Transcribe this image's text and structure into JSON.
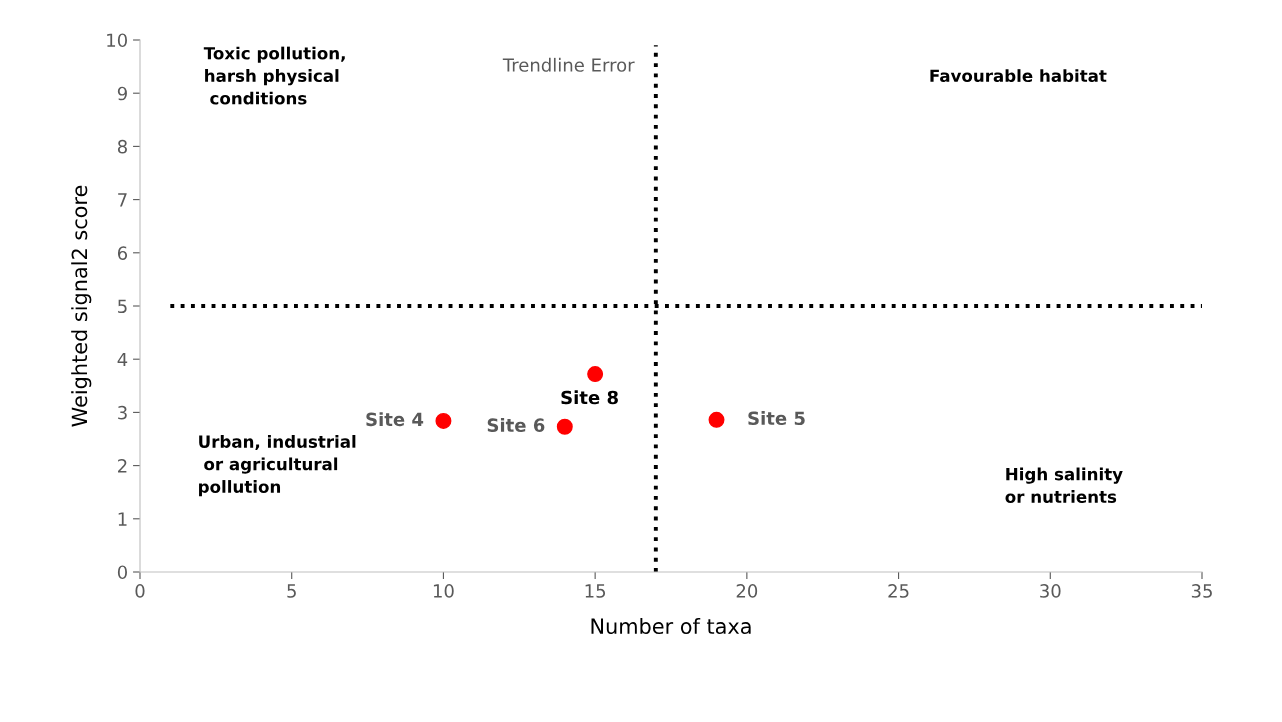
{
  "chart_data": {
    "type": "scatter",
    "xlabel": "Number of taxa",
    "ylabel": "Weighted signal2 score",
    "x": [
      10,
      14,
      15,
      19
    ],
    "values": [
      2.84,
      2.73,
      3.72,
      2.86
    ],
    "color": "#ff0000",
    "marker": "circle",
    "xlim": [
      0,
      35
    ],
    "ylim": [
      0,
      10
    ],
    "xticks": [
      0,
      5,
      10,
      15,
      20,
      25,
      30,
      35
    ],
    "yticks": [
      0,
      1,
      2,
      3,
      4,
      5,
      6,
      7,
      8,
      9,
      10
    ],
    "grid": false,
    "ref_lines": [
      {
        "axis": "x",
        "value": 17,
        "label": "Trendline Error",
        "line_style": "dotted",
        "color": "#000000"
      },
      {
        "axis": "y",
        "value": 5,
        "line_style": "dotted",
        "color": "#000000"
      }
    ],
    "annotations": [
      {
        "text": "Site 4",
        "x": 10,
        "y": 2.84
      },
      {
        "text": "Site 6",
        "x": 14,
        "y": 2.73
      },
      {
        "text": "Site 8",
        "x": 15,
        "y": 3.72
      },
      {
        "text": "Site 5",
        "x": 19,
        "y": 2.86
      },
      "Toxic pollution,\nharsh physical\n conditions",
      "Favourable habitat",
      "Urban, industrial\n or agricultural\npollution",
      "High salinity\nor nutrients"
    ]
  }
}
